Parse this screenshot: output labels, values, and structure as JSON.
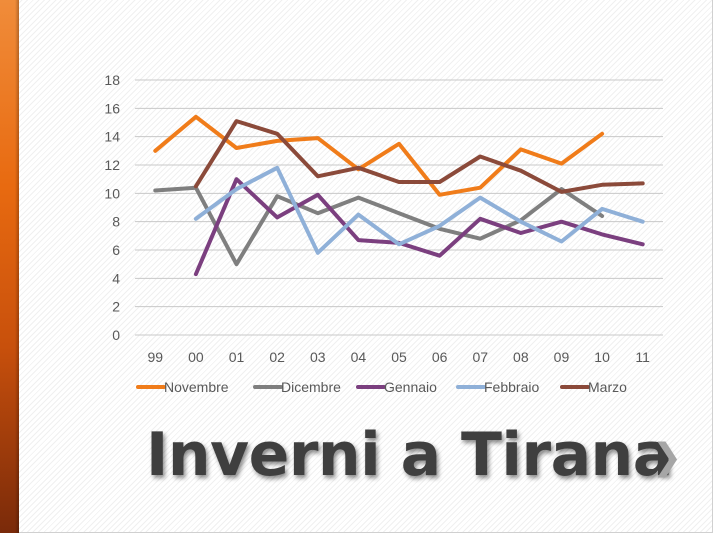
{
  "slide": {
    "title": "Inverni a Tirana",
    "next_icon": "chevron-right-icon",
    "next_glyph": "❯"
  },
  "chart_data": {
    "type": "line",
    "categories": [
      "99",
      "00",
      "01",
      "02",
      "03",
      "04",
      "05",
      "06",
      "07",
      "08",
      "09",
      "10",
      "11"
    ],
    "ylim": [
      0,
      18
    ],
    "yticks": [
      0,
      2,
      4,
      6,
      8,
      10,
      12,
      14,
      16,
      18
    ],
    "grid": true,
    "legend_position": "bottom",
    "series": [
      {
        "name": "Novembre",
        "color": "#f07c1a",
        "values": [
          13.0,
          15.4,
          13.2,
          13.7,
          13.9,
          11.7,
          13.5,
          9.9,
          10.4,
          13.1,
          12.1,
          14.2,
          null
        ]
      },
      {
        "name": "Dicembre",
        "color": "#7f7f7f",
        "values": [
          10.2,
          10.4,
          5.0,
          9.8,
          8.6,
          9.7,
          8.6,
          7.5,
          6.8,
          8.1,
          10.3,
          8.4,
          null
        ]
      },
      {
        "name": "Gennaio",
        "color": "#7b3f7f",
        "values": [
          null,
          4.3,
          11.0,
          8.3,
          9.9,
          6.7,
          6.5,
          5.6,
          8.2,
          7.2,
          8.0,
          7.1,
          6.4
        ]
      },
      {
        "name": "Febbraio",
        "color": "#8fb0d8",
        "values": [
          null,
          8.2,
          10.3,
          11.8,
          5.8,
          8.5,
          6.4,
          7.7,
          9.7,
          8.0,
          6.6,
          8.9,
          8.0
        ]
      },
      {
        "name": "Marzo",
        "color": "#8b4a3a",
        "values": [
          null,
          10.5,
          15.1,
          14.2,
          11.2,
          11.8,
          10.8,
          10.8,
          12.6,
          11.6,
          10.1,
          10.6,
          10.7
        ]
      }
    ]
  }
}
